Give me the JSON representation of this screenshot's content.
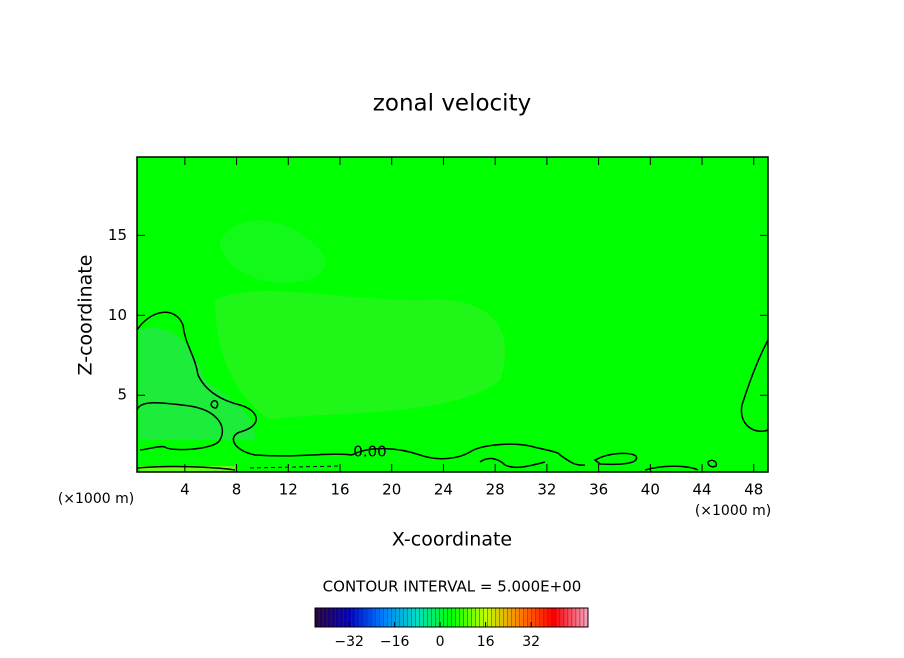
{
  "chart_data": {
    "type": "contour",
    "title": "zonal velocity",
    "xlabel": "X-coordinate",
    "ylabel": "Z-coordinate",
    "x_unit_left": "(×1000 m)",
    "x_unit_right": "(×1000 m)",
    "xlim": [
      0.3,
      49.1
    ],
    "ylim": [
      0.2,
      19.9
    ],
    "xticks": [
      4,
      8,
      12,
      16,
      20,
      24,
      28,
      32,
      36,
      40,
      44,
      48
    ],
    "yticks": [
      5,
      10,
      15
    ],
    "field_color": "#00ff00",
    "contour_levels": [
      0
    ],
    "contour_label": "0.00",
    "contour_interval_text": "CONTOUR INTERVAL = 5.000E+00",
    "colorbar": {
      "lim": [
        -44,
        52
      ],
      "ticks": [
        {
          "value": -32,
          "label": "−32"
        },
        {
          "value": -16,
          "label": "−16"
        },
        0,
        16,
        32
      ],
      "colormap": [
        "#2a0040",
        "#0000c0",
        "#0080ff",
        "#00e0c0",
        "#00ff00",
        "#c0ff00",
        "#ff8000",
        "#ff0000",
        "#ffa0c0"
      ]
    }
  }
}
